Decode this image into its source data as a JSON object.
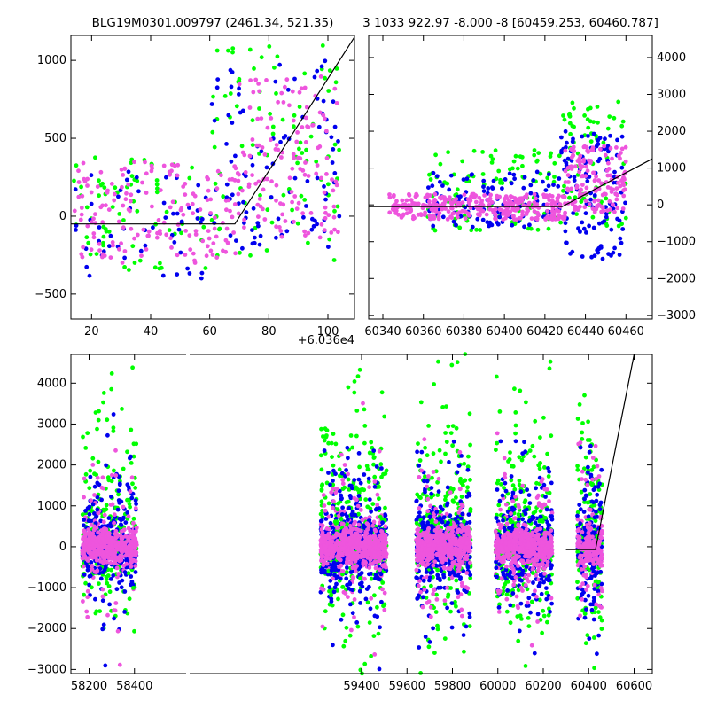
{
  "colors": {
    "green": "#00ff00",
    "blue": "#0000ee",
    "pink": "#ee55dd",
    "model": "#000000"
  },
  "chart_data": [
    {
      "id": "top-left",
      "type": "scatter",
      "title": "BLG19M0301.009797 (2461.34, 521.35)",
      "x_offset_label": "+6.036e4",
      "xlim": [
        13,
        109
      ],
      "ylim": [
        -660,
        1160
      ],
      "xticks": [
        20,
        40,
        60,
        80,
        100
      ],
      "yticks": [
        -500,
        0,
        500,
        1000
      ],
      "y_axis_side": "left",
      "model_line": [
        [
          13,
          -50
        ],
        [
          68.5,
          -50
        ],
        [
          109,
          1150
        ]
      ],
      "series": [
        {
          "color": "green",
          "cloud": [
            {
              "x": [
                14,
                60
              ],
              "y": [
                -350,
                400
              ],
              "n": 70
            },
            {
              "x": [
                60,
                104
              ],
              "y": [
                -300,
                1100
              ],
              "n": 90
            }
          ]
        },
        {
          "color": "blue",
          "cloud": [
            {
              "x": [
                14,
                60
              ],
              "y": [
                -400,
                300
              ],
              "n": 55
            },
            {
              "x": [
                60,
                104
              ],
              "y": [
                -250,
                1000
              ],
              "n": 100
            }
          ]
        },
        {
          "color": "pink",
          "cloud": [
            {
              "x": [
                14,
                70
              ],
              "y": [
                -300,
                350
              ],
              "n": 170
            },
            {
              "x": [
                70,
                104
              ],
              "y": [
                -150,
                900
              ],
              "n": 130
            }
          ]
        }
      ]
    },
    {
      "id": "top-right",
      "type": "scatter",
      "title": "3 1033 922.97 -8.000 -8 [60459.253, 60460.787]",
      "xlim": [
        60333,
        60473
      ],
      "ylim": [
        -3100,
        4600
      ],
      "xticks": [
        60340,
        60360,
        60380,
        60400,
        60420,
        60440,
        60460
      ],
      "yticks": [
        -3000,
        -2000,
        -1000,
        0,
        1000,
        2000,
        3000,
        4000
      ],
      "y_axis_side": "right",
      "model_line": [
        [
          60333,
          -50
        ],
        [
          60428.5,
          -50
        ],
        [
          60473,
          1250
        ]
      ],
      "series": [
        {
          "color": "green",
          "cloud": [
            {
              "x": [
                60362,
                60428
              ],
              "y": [
                -700,
                1500
              ],
              "n": 110
            },
            {
              "x": [
                60428,
                60460
              ],
              "y": [
                -600,
                2800
              ],
              "n": 70
            }
          ]
        },
        {
          "color": "blue",
          "cloud": [
            {
              "x": [
                60362,
                60428
              ],
              "y": [
                -600,
                900
              ],
              "n": 120
            },
            {
              "x": [
                60428,
                60460
              ],
              "y": [
                -1500,
                2000
              ],
              "n": 120
            }
          ]
        },
        {
          "color": "pink",
          "cloud": [
            {
              "x": [
                60343,
                60430
              ],
              "y": [
                -400,
                300
              ],
              "n": 320
            },
            {
              "x": [
                60430,
                60460
              ],
              "y": [
                -200,
                1600
              ],
              "n": 150
            }
          ]
        }
      ]
    },
    {
      "id": "bottom",
      "type": "scatter",
      "title": "",
      "xlim": [
        58120,
        60680
      ],
      "ylim": [
        -3100,
        4700
      ],
      "xticks": [
        58200,
        58400,
        59400,
        59600,
        59800,
        60000,
        60200,
        60400,
        60600
      ],
      "yticks": [
        -3000,
        -2000,
        -1000,
        0,
        1000,
        2000,
        3000,
        4000
      ],
      "y_axis_side": "left",
      "model_line": [
        [
          60300,
          -70
        ],
        [
          60430,
          -70
        ],
        [
          60600,
          4700
        ]
      ],
      "seasons": [
        {
          "x": [
            58170,
            58410
          ],
          "n_core": 700,
          "n_spread": 140
        },
        {
          "x": [
            59220,
            59510
          ],
          "n_core": 950,
          "n_spread": 220
        },
        {
          "x": [
            59640,
            59880
          ],
          "n_core": 800,
          "n_spread": 180
        },
        {
          "x": [
            59990,
            60240
          ],
          "n_core": 800,
          "n_spread": 180
        },
        {
          "x": [
            60350,
            60460
          ],
          "n_core": 250,
          "n_spread": 110
        }
      ]
    }
  ]
}
